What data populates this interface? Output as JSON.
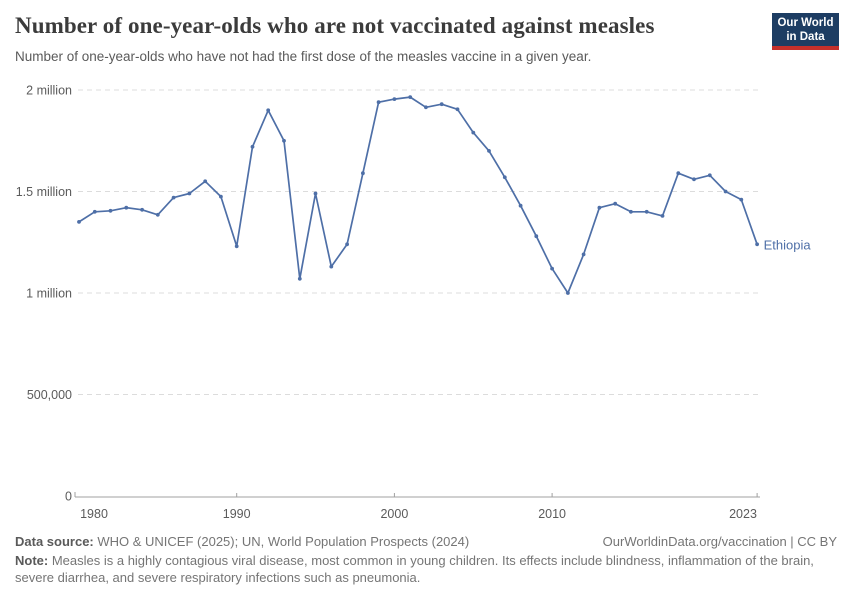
{
  "header": {
    "title": "Number of one-year-olds who are not vaccinated against measles",
    "subtitle": "Number of one-year-olds who have not had the first dose of the measles vaccine in a given year."
  },
  "logo": {
    "line1": "Our World",
    "line2": "in Data",
    "bg_color": "#1d3d63",
    "accent_color": "#c5302b"
  },
  "chart_data": {
    "type": "line",
    "title": "Number of one-year-olds who are not vaccinated against measles",
    "entity_label": "Ethiopia",
    "line_color": "#4e6fa7",
    "grid_color": "#dcdcdc",
    "axis_color": "#a0a0a0",
    "tick_text_color": "#5b5b5b",
    "grid": "horizontal-dashed",
    "legend_position": "end-of-line",
    "xlim": [
      1980,
      2023
    ],
    "ylim": [
      0,
      2000000
    ],
    "x": [
      1980,
      1981,
      1982,
      1983,
      1984,
      1985,
      1986,
      1987,
      1988,
      1989,
      1990,
      1991,
      1992,
      1993,
      1994,
      1995,
      1996,
      1997,
      1998,
      1999,
      2000,
      2001,
      2002,
      2003,
      2004,
      2005,
      2006,
      2007,
      2008,
      2009,
      2010,
      2011,
      2012,
      2013,
      2014,
      2015,
      2016,
      2017,
      2018,
      2019,
      2020,
      2021,
      2022,
      2023
    ],
    "series": [
      {
        "name": "Ethiopia",
        "values": [
          1350000,
          1400000,
          1405000,
          1420000,
          1410000,
          1385000,
          1470000,
          1490000,
          1550000,
          1475000,
          1230000,
          1720000,
          1900000,
          1750000,
          1070000,
          1490000,
          1130000,
          1240000,
          1590000,
          1940000,
          1955000,
          1965000,
          1915000,
          1930000,
          1905000,
          1790000,
          1700000,
          1570000,
          1430000,
          1280000,
          1120000,
          1000000,
          1190000,
          1420000,
          1440000,
          1400000,
          1400000,
          1380000,
          1590000,
          1560000,
          1580000,
          1500000,
          1460000,
          1240000
        ]
      }
    ],
    "y_ticks": [
      {
        "value": 0,
        "label": "0"
      },
      {
        "value": 500000,
        "label": "500,000"
      },
      {
        "value": 1000000,
        "label": "1 million"
      },
      {
        "value": 1500000,
        "label": "1.5 million"
      },
      {
        "value": 2000000,
        "label": "2 million"
      }
    ],
    "x_ticks": [
      {
        "value": 1980,
        "label": "1980"
      },
      {
        "value": 1990,
        "label": "1990"
      },
      {
        "value": 2000,
        "label": "2000"
      },
      {
        "value": 2010,
        "label": "2010"
      },
      {
        "value": 2023,
        "label": "2023"
      }
    ]
  },
  "footer": {
    "source_label": "Data source:",
    "source_text": " WHO & UNICEF (2025); UN, World Population Prospects (2024)",
    "license": "OurWorldinData.org/vaccination | CC BY",
    "note_label": "Note:",
    "note_text": " Measles is a highly contagious viral disease, most common in young children. Its effects include blindness, inflammation of the brain, severe diarrhea, and severe respiratory infections such as pneumonia."
  }
}
